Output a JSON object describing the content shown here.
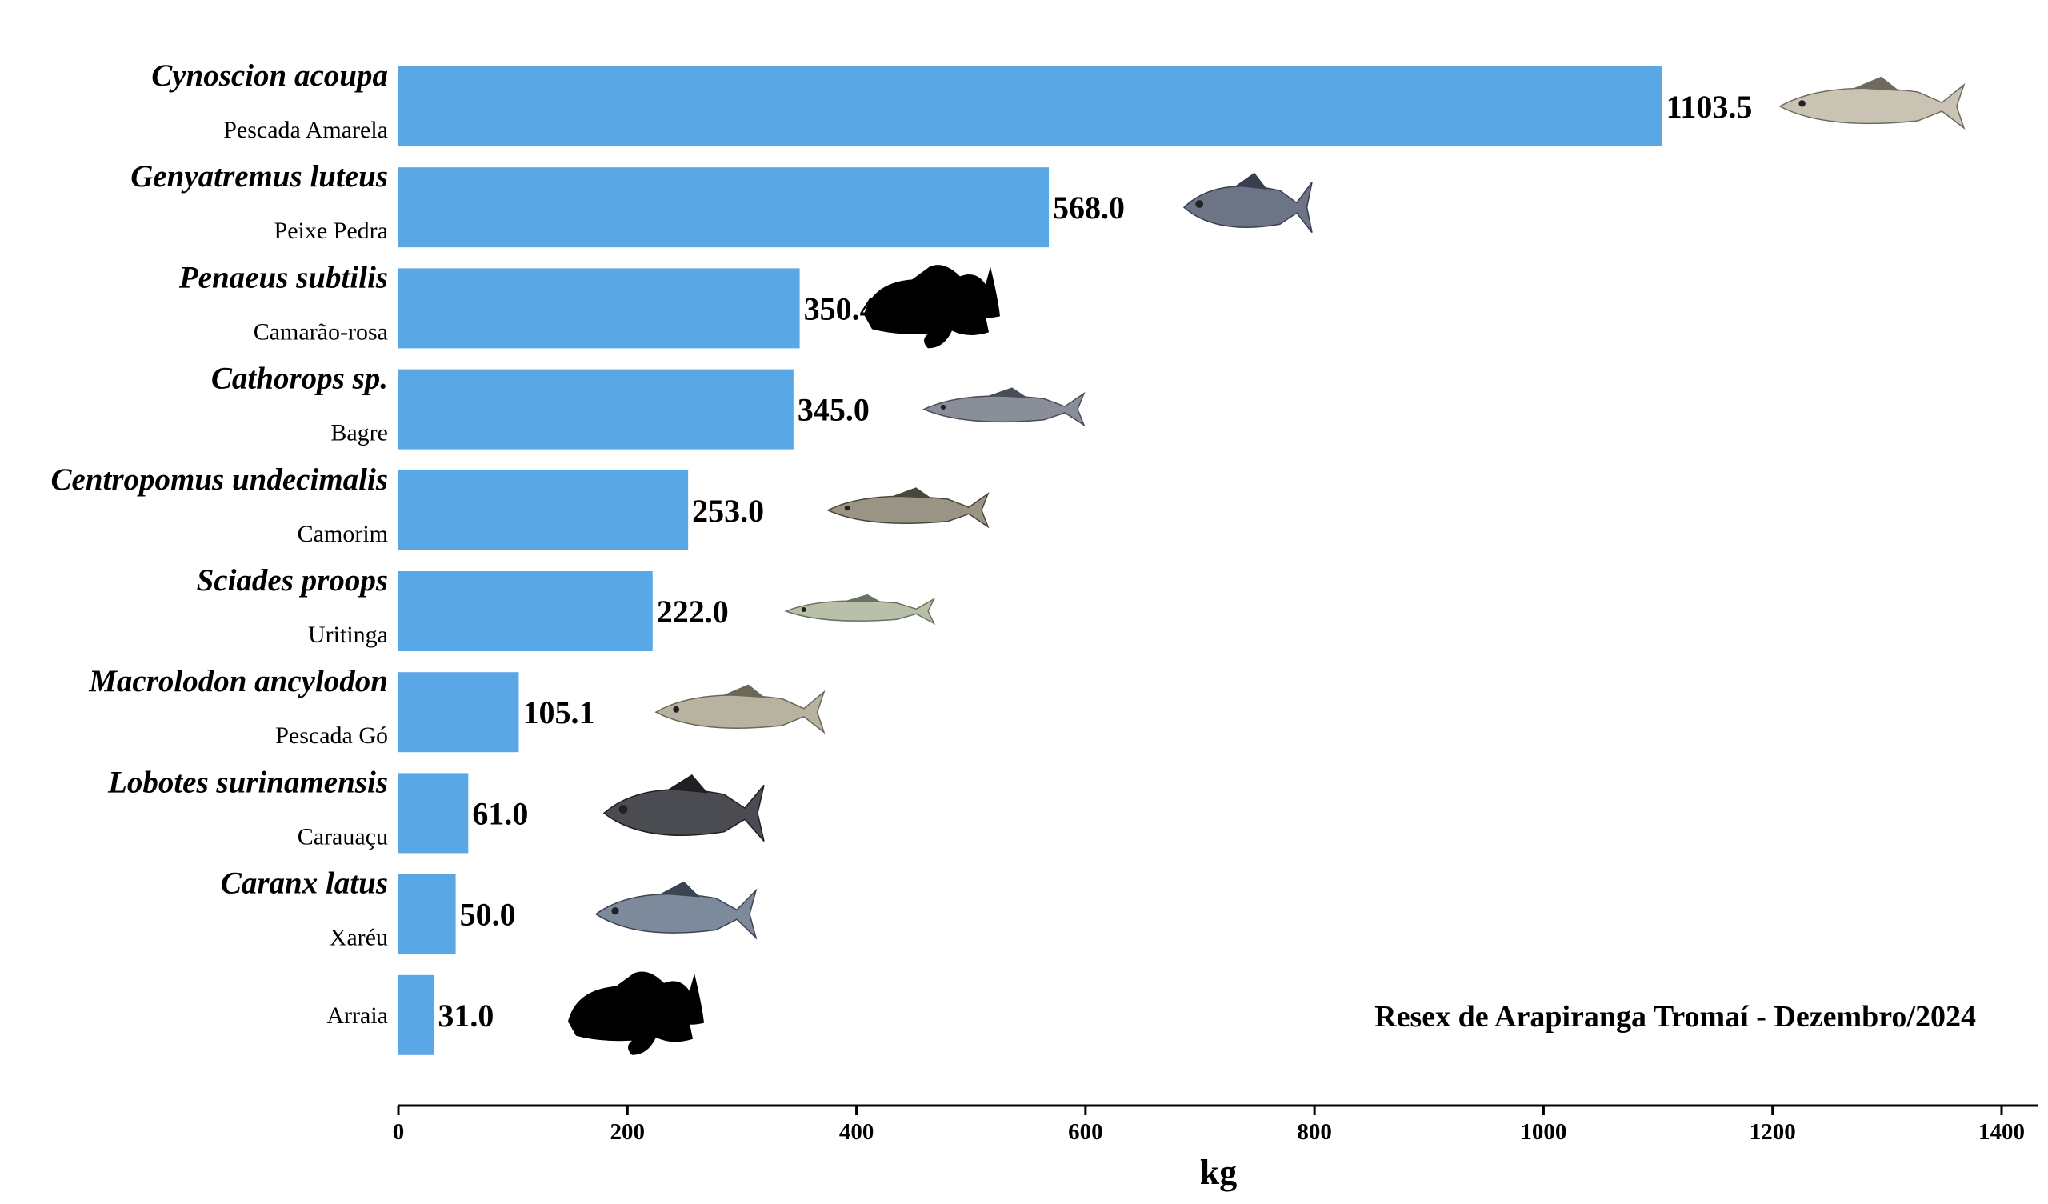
{
  "chart_data": {
    "type": "bar",
    "orientation": "horizontal",
    "categories": [
      {
        "scientific_name": "Cynoscion acoupa",
        "common_name": "Pescada Amarela"
      },
      {
        "scientific_name": "Genyatremus luteus",
        "common_name": "Peixe Pedra"
      },
      {
        "scientific_name": "Penaeus subtilis",
        "common_name": "Camarão-rosa"
      },
      {
        "scientific_name": "Cathorops sp.",
        "common_name": "Bagre"
      },
      {
        "scientific_name": "Centropomus undecimalis",
        "common_name": "Camorim"
      },
      {
        "scientific_name": "Sciades proops",
        "common_name": "Uritinga"
      },
      {
        "scientific_name": "Macrolodon ancylodon",
        "common_name": "Pescada Gó"
      },
      {
        "scientific_name": "Lobotes surinamensis",
        "common_name": "Carauaçu"
      },
      {
        "scientific_name": "Caranx latus",
        "common_name": "Xaréu"
      },
      {
        "scientific_name": "",
        "common_name": "Arraia"
      }
    ],
    "values": [
      1103.5,
      568.0,
      350.4,
      345.0,
      253.0,
      222.0,
      105.1,
      61.0,
      50.0,
      31.0
    ],
    "value_labels": [
      "1103.5",
      "568.0",
      "350.4",
      "345.0",
      "253.0",
      "222.0",
      "105.1",
      "61.0",
      "50.0",
      "31.0"
    ],
    "xlabel": "kg",
    "xlim": [
      0,
      1400
    ],
    "xticks": [
      0,
      200,
      400,
      600,
      800,
      1000,
      1200,
      1400
    ],
    "annotation": "Resex de Arapiranga Tromaí - Dezembro/2024",
    "bar_color": "#5aa7e6",
    "grid": false,
    "legend": "none"
  },
  "icons": [
    "pescada-fish-icon",
    "peixe-pedra-fish-icon",
    "silhouette-fish-icon",
    "catfish-icon",
    "snook-fish-icon",
    "catfish-icon",
    "weakfish-icon",
    "tripletail-fish-icon",
    "jack-fish-icon",
    "silhouette-fish-icon"
  ]
}
